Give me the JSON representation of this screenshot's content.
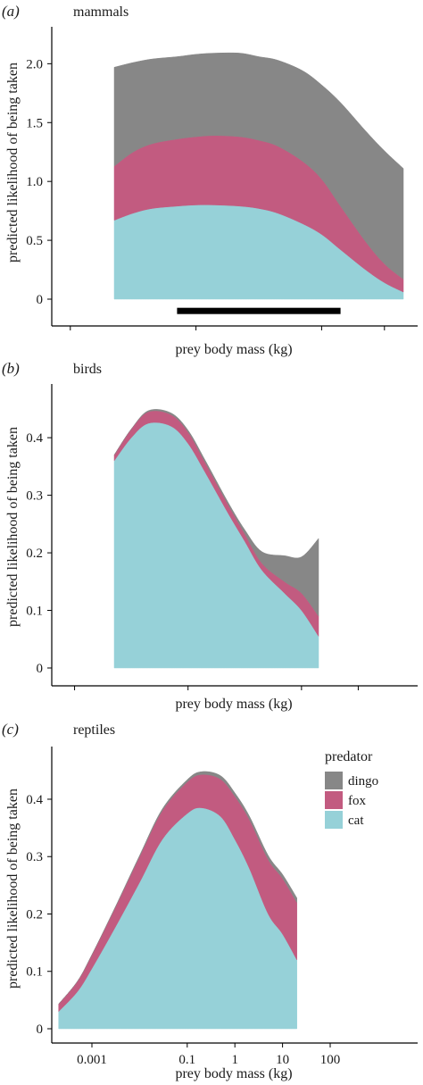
{
  "chart_data": [
    {
      "type": "area",
      "stacked": true,
      "panel_label": "(a)",
      "title": "mammals",
      "xlabel": "prey body mass (kg)",
      "ylabel": "predicted likelihood of being taken",
      "ylim": [
        0,
        2.2
      ],
      "yticks": [
        0,
        0.5,
        1.0,
        1.5,
        2.0
      ],
      "yticklabels": [
        "0",
        "0.5",
        "1.0",
        "1.5",
        "2.0"
      ],
      "log_x": true,
      "xlim": [
        0.0001,
        1000
      ],
      "xticks": [
        0.001,
        0.1,
        10,
        100
      ],
      "x": [
        0.005,
        0.01,
        0.02,
        0.05,
        0.1,
        0.2,
        0.5,
        1,
        2,
        5,
        10,
        20,
        50,
        100,
        200
      ],
      "series": [
        {
          "name": "cat",
          "color": "#96D1D8",
          "values": [
            0.67,
            0.73,
            0.77,
            0.79,
            0.8,
            0.8,
            0.79,
            0.77,
            0.73,
            0.64,
            0.55,
            0.42,
            0.25,
            0.14,
            0.06
          ]
        },
        {
          "name": "fox",
          "color": "#C25B80",
          "values": [
            0.46,
            0.52,
            0.55,
            0.57,
            0.58,
            0.59,
            0.59,
            0.58,
            0.57,
            0.53,
            0.47,
            0.37,
            0.24,
            0.16,
            0.11
          ]
        },
        {
          "name": "dingo",
          "color": "#878787",
          "values": [
            0.84,
            0.76,
            0.72,
            0.7,
            0.7,
            0.7,
            0.71,
            0.71,
            0.73,
            0.77,
            0.8,
            0.88,
            0.94,
            0.96,
            0.94
          ]
        }
      ],
      "annotation_bar": {
        "x_start": 0.05,
        "x_end": 20,
        "y": -0.1
      }
    },
    {
      "type": "area",
      "stacked": true,
      "panel_label": "(b)",
      "title": "birds",
      "xlabel": "prey body mass (kg)",
      "ylabel": "predicted likelihood of being taken",
      "ylim": [
        0,
        0.47
      ],
      "yticks": [
        0,
        0.1,
        0.2,
        0.3,
        0.4
      ],
      "yticklabels": [
        "0",
        "0.1",
        "0.2",
        "0.3",
        "0.4"
      ],
      "log_x": true,
      "xlim": [
        0.0001,
        1000
      ],
      "xticks": [
        0.001,
        0.1,
        10,
        100
      ],
      "x": [
        0.005,
        0.01,
        0.02,
        0.05,
        0.1,
        0.2,
        0.5,
        1,
        2,
        5,
        10,
        20
      ],
      "series": [
        {
          "name": "cat",
          "color": "#96D1D8",
          "values": [
            0.36,
            0.4,
            0.425,
            0.42,
            0.39,
            0.34,
            0.27,
            0.22,
            0.17,
            0.13,
            0.1,
            0.055
          ]
        },
        {
          "name": "fox",
          "color": "#C25B80",
          "values": [
            0.01,
            0.015,
            0.02,
            0.02,
            0.02,
            0.017,
            0.015,
            0.013,
            0.012,
            0.02,
            0.03,
            0.035
          ]
        },
        {
          "name": "dingo",
          "color": "#878787",
          "values": [
            0.0,
            0.0,
            0.002,
            0.003,
            0.003,
            0.004,
            0.004,
            0.007,
            0.02,
            0.045,
            0.063,
            0.135
          ]
        }
      ]
    },
    {
      "type": "area",
      "stacked": true,
      "panel_label": "(c)",
      "title": "reptiles",
      "xlabel": "prey body mass (kg)",
      "ylabel": "predicted likelihood of being taken",
      "ylim": [
        0,
        0.47
      ],
      "yticks": [
        0,
        0.1,
        0.2,
        0.3,
        0.4
      ],
      "yticklabels": [
        "0",
        "0.1",
        "0.2",
        "0.3",
        "0.4"
      ],
      "log_x": true,
      "xlim": [
        0.0001,
        1000
      ],
      "xticks": [
        0.001,
        0.1,
        1,
        10,
        100
      ],
      "xticklabels": [
        "0.001",
        "0.1",
        "1",
        "10",
        "100"
      ],
      "x": [
        0.0002,
        0.0005,
        0.001,
        0.003,
        0.01,
        0.03,
        0.1,
        0.2,
        0.5,
        1,
        2,
        5,
        10,
        20
      ],
      "series": [
        {
          "name": "cat",
          "color": "#96D1D8",
          "values": [
            0.03,
            0.065,
            0.105,
            0.175,
            0.255,
            0.33,
            0.375,
            0.385,
            0.37,
            0.33,
            0.28,
            0.2,
            0.165,
            0.12
          ]
        },
        {
          "name": "fox",
          "color": "#C25B80",
          "values": [
            0.013,
            0.018,
            0.024,
            0.034,
            0.045,
            0.05,
            0.055,
            0.058,
            0.065,
            0.075,
            0.085,
            0.095,
            0.097,
            0.1
          ]
        },
        {
          "name": "dingo",
          "color": "#878787",
          "values": [
            0.0,
            0.0,
            0.0,
            0.001,
            0.002,
            0.003,
            0.004,
            0.005,
            0.006,
            0.006,
            0.006,
            0.007,
            0.007,
            0.008
          ]
        }
      ]
    }
  ],
  "legend": {
    "title": "predator",
    "entries": [
      {
        "name": "dingo",
        "color": "#878787"
      },
      {
        "name": "fox",
        "color": "#C25B80"
      },
      {
        "name": "cat",
        "color": "#96D1D8"
      }
    ]
  }
}
